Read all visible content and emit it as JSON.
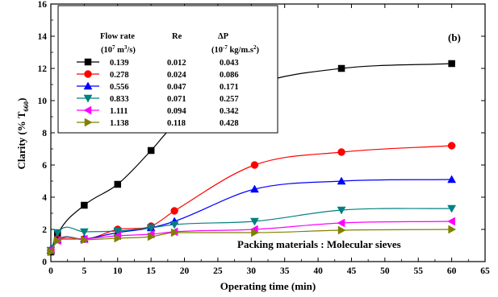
{
  "chart_data": {
    "type": "scatter",
    "title": "",
    "panel_label": "(b)",
    "xlabel": "Operating time (min)",
    "ylabel_main": "Clarity (% T",
    "ylabel_sub": "660",
    "ylabel_close": ")",
    "xlim": [
      0,
      65
    ],
    "ylim": [
      0,
      16
    ],
    "xticks": [
      0,
      5,
      10,
      15,
      20,
      25,
      30,
      35,
      40,
      45,
      50,
      55,
      60,
      65
    ],
    "yticks": [
      0,
      2,
      4,
      6,
      8,
      10,
      12,
      14,
      16
    ],
    "grid": false,
    "legend_position": "top-left",
    "annotation": "Packing materials : Molecular sieves",
    "legend_headers": {
      "flow_rate": "Flow rate",
      "flow_rate_unit_a": "(10",
      "flow_rate_unit_exp": "7",
      "flow_rate_unit_b": " m",
      "flow_rate_unit_exp2": "3",
      "flow_rate_unit_c": "/s)",
      "re": "Re",
      "dp": "ΔP",
      "dp_unit_a": "(10",
      "dp_unit_exp": "-7",
      "dp_unit_b": " kg/m.s",
      "dp_unit_exp2": "2",
      "dp_unit_c": ")"
    },
    "series": [
      {
        "name": "0.139",
        "re": "0.012",
        "dp": "0.043",
        "color": "#000000",
        "marker": "square",
        "x": [
          0,
          1,
          5,
          10,
          15,
          18.5,
          30.5,
          43.5,
          60
        ],
        "y": [
          0.6,
          1.7,
          3.5,
          4.8,
          6.9,
          8.5,
          11.0,
          12.0,
          12.3
        ]
      },
      {
        "name": "0.278",
        "re": "0.024",
        "dp": "0.086",
        "color": "#ff0000",
        "marker": "circle",
        "x": [
          0,
          1,
          5,
          10,
          15,
          18.5,
          30.5,
          43.5,
          60
        ],
        "y": [
          0.7,
          1.4,
          1.4,
          2.0,
          2.2,
          3.15,
          6.0,
          6.8,
          7.2
        ]
      },
      {
        "name": "0.556",
        "re": "0.047",
        "dp": "0.171",
        "color": "#0000ff",
        "marker": "triangle-up",
        "x": [
          0,
          1,
          5,
          10,
          15,
          18.5,
          30.5,
          43.5,
          60
        ],
        "y": [
          0.7,
          1.35,
          1.4,
          1.8,
          2.1,
          2.5,
          4.5,
          5.0,
          5.1
        ]
      },
      {
        "name": "0.833",
        "re": "0.071",
        "dp": "0.257",
        "color": "#008080",
        "marker": "triangle-down",
        "x": [
          0,
          1,
          5,
          10,
          15,
          18.5,
          30.5,
          43.5,
          60
        ],
        "y": [
          0.7,
          1.8,
          1.85,
          1.9,
          2.1,
          2.3,
          2.5,
          3.2,
          3.3
        ]
      },
      {
        "name": "1.111",
        "re": "0.094",
        "dp": "0.342",
        "color": "#ff00ff",
        "marker": "triangle-left",
        "x": [
          0,
          1,
          5,
          10,
          15,
          18.5,
          30.5,
          43.5,
          60
        ],
        "y": [
          0.7,
          1.3,
          1.4,
          1.6,
          1.7,
          1.85,
          2.0,
          2.4,
          2.5
        ]
      },
      {
        "name": "1.138",
        "re": "0.118",
        "dp": "0.428",
        "color": "#808000",
        "marker": "triangle-right",
        "x": [
          0,
          1,
          5,
          10,
          15,
          18.5,
          30.5,
          43.5,
          60
        ],
        "y": [
          0.6,
          1.3,
          1.35,
          1.45,
          1.55,
          1.8,
          1.8,
          1.95,
          2.0
        ]
      }
    ]
  }
}
